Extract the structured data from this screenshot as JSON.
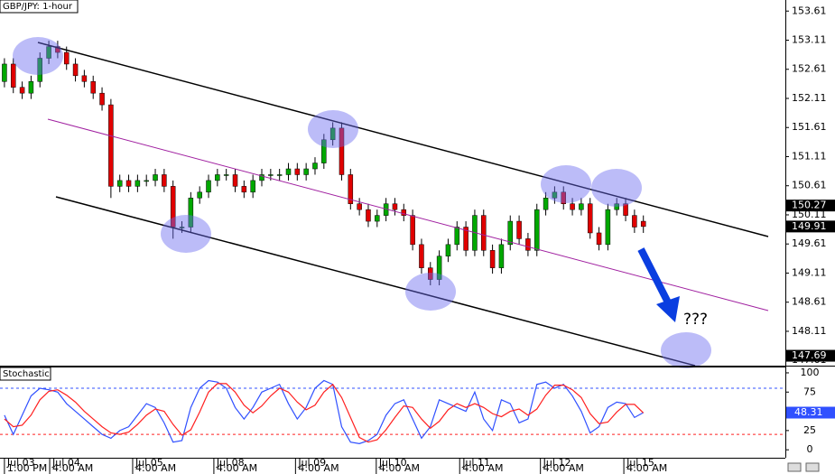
{
  "chart_data": {
    "type": "candlestick",
    "title": "GBP/JPY: 1-hour",
    "up_color": "#00a800",
    "down_color": "#e00000",
    "xlim": [
      -0.5,
      88
    ],
    "x": [
      0,
      1,
      2,
      3,
      4,
      5,
      6,
      7,
      8,
      9,
      10,
      11,
      12,
      13,
      14,
      15,
      16,
      17,
      18,
      19,
      20,
      21,
      22,
      23,
      24,
      25,
      26,
      27,
      28,
      29,
      30,
      31,
      32,
      33,
      34,
      35,
      36,
      37,
      38,
      39,
      40,
      41,
      42,
      43,
      44,
      45,
      46,
      47,
      48,
      49,
      50,
      51,
      52,
      53,
      54,
      55,
      56,
      57,
      58,
      59,
      60,
      61,
      62,
      63,
      64,
      65,
      66,
      67,
      68,
      69,
      70,
      71,
      72
    ],
    "open": [
      152.4,
      152.7,
      152.3,
      152.2,
      152.4,
      152.8,
      153.0,
      152.9,
      152.7,
      152.5,
      152.4,
      152.2,
      152.0,
      150.6,
      150.7,
      150.6,
      150.7,
      150.7,
      150.8,
      150.6,
      149.9,
      149.9,
      150.4,
      150.5,
      150.7,
      150.8,
      150.8,
      150.6,
      150.5,
      150.7,
      150.8,
      150.8,
      150.8,
      150.9,
      150.8,
      150.9,
      151.0,
      151.4,
      151.6,
      150.8,
      150.3,
      150.2,
      150.0,
      150.1,
      150.3,
      150.2,
      150.1,
      149.6,
      149.2,
      149.0,
      149.4,
      149.6,
      149.9,
      149.5,
      150.1,
      149.5,
      149.2,
      149.6,
      150.0,
      149.7,
      149.5,
      150.2,
      150.4,
      150.5,
      150.3,
      150.2,
      150.3,
      149.8,
      149.6,
      150.2,
      150.3,
      150.1,
      150.0
    ],
    "high": [
      152.8,
      152.8,
      152.4,
      152.5,
      152.9,
      153.1,
      153.1,
      153.0,
      152.8,
      152.6,
      152.5,
      152.3,
      152.1,
      150.8,
      150.8,
      150.8,
      150.8,
      150.9,
      150.9,
      150.7,
      150.0,
      150.5,
      150.6,
      150.8,
      150.9,
      150.9,
      150.9,
      150.7,
      150.8,
      150.9,
      150.9,
      150.9,
      151.0,
      151.0,
      151.0,
      151.1,
      151.5,
      151.7,
      151.7,
      150.9,
      150.4,
      150.3,
      150.2,
      150.4,
      150.4,
      150.3,
      150.2,
      149.7,
      149.3,
      149.5,
      149.7,
      150.0,
      150.0,
      150.2,
      150.2,
      149.6,
      149.7,
      150.1,
      150.1,
      149.8,
      150.3,
      150.5,
      150.6,
      150.6,
      150.4,
      150.4,
      150.4,
      149.9,
      150.3,
      150.4,
      150.4,
      150.2,
      150.1
    ],
    "low": [
      152.3,
      152.2,
      152.1,
      152.1,
      152.3,
      152.7,
      152.8,
      152.6,
      152.4,
      152.3,
      152.1,
      151.9,
      150.4,
      150.5,
      150.5,
      150.5,
      150.6,
      150.6,
      150.5,
      149.7,
      149.8,
      149.8,
      150.3,
      150.4,
      150.6,
      150.7,
      150.5,
      150.4,
      150.4,
      150.6,
      150.7,
      150.7,
      150.7,
      150.7,
      150.7,
      150.8,
      150.9,
      151.3,
      150.7,
      150.2,
      150.1,
      149.9,
      149.9,
      150.0,
      150.1,
      150.0,
      149.5,
      149.1,
      148.9,
      148.9,
      149.3,
      149.5,
      149.4,
      149.4,
      149.4,
      149.1,
      149.1,
      149.5,
      149.6,
      149.4,
      149.4,
      150.1,
      150.3,
      150.2,
      150.1,
      150.1,
      149.7,
      149.5,
      149.5,
      150.1,
      150.0,
      149.8,
      149.8
    ],
    "close": [
      152.7,
      152.3,
      152.2,
      152.4,
      152.8,
      153.0,
      152.9,
      152.7,
      152.5,
      152.4,
      152.2,
      152.0,
      150.6,
      150.7,
      150.6,
      150.7,
      150.7,
      150.8,
      150.6,
      149.9,
      149.9,
      150.4,
      150.5,
      150.7,
      150.8,
      150.8,
      150.6,
      150.5,
      150.7,
      150.8,
      150.8,
      150.8,
      150.9,
      150.8,
      150.9,
      151.0,
      151.4,
      151.6,
      150.8,
      150.3,
      150.2,
      150.0,
      150.1,
      150.3,
      150.2,
      150.1,
      149.6,
      149.2,
      149.0,
      149.4,
      149.6,
      149.9,
      149.5,
      150.1,
      149.5,
      149.2,
      149.6,
      150.0,
      149.7,
      149.5,
      150.2,
      150.4,
      150.5,
      150.3,
      150.2,
      150.3,
      149.8,
      149.6,
      150.2,
      150.3,
      150.1,
      149.9,
      149.91
    ],
    "ylim": [
      147.52,
      153.8
    ],
    "yticks": [
      153.61,
      153.11,
      152.61,
      152.11,
      151.61,
      151.11,
      150.61,
      150.11,
      149.61,
      149.11,
      148.61,
      148.11,
      147.61
    ],
    "price_markers": [
      150.27,
      149.91,
      147.69
    ],
    "xticks": [
      {
        "value": 0,
        "label": "Jul 03"
      },
      {
        "value": 5.1,
        "label": "Jul 04"
      },
      {
        "value": 14.45,
        "label": "Jul 05"
      },
      {
        "value": 23.6,
        "label": "Jul 08"
      },
      {
        "value": 32.8,
        "label": "Jul 09"
      },
      {
        "value": 41.9,
        "label": "Jul 10"
      },
      {
        "value": 51.3,
        "label": "Jul 11"
      },
      {
        "value": 60.4,
        "label": "Jul 12"
      },
      {
        "value": 69.8,
        "label": "Jul 15"
      }
    ],
    "xtick_times": [
      "1:00 PM",
      "4:00 AM",
      "4:00 AM",
      "4:00 AM",
      "4:00 AM",
      "4:00 AM",
      "4:00 AM",
      "4:00 AM",
      "4:00 AM"
    ],
    "annotation": "???",
    "indicator": {
      "name": "Stochastic",
      "ylim": [
        -8,
        107
      ],
      "yticks": [
        100,
        75,
        50,
        25,
        0
      ],
      "levels": [
        {
          "value": 80,
          "color": "#3050ff"
        },
        {
          "value": 20,
          "color": "#ff2020"
        }
      ],
      "marker": 48.31,
      "series": [
        {
          "color": "#3050ff",
          "values": [
            45,
            20,
            45,
            70,
            80,
            78,
            75,
            60,
            50,
            40,
            30,
            20,
            15,
            25,
            30,
            45,
            60,
            55,
            35,
            10,
            12,
            55,
            80,
            90,
            88,
            80,
            55,
            40,
            55,
            75,
            80,
            85,
            60,
            40,
            55,
            80,
            90,
            85,
            30,
            10,
            8,
            12,
            20,
            45,
            60,
            65,
            40,
            15,
            30,
            65,
            60,
            55,
            50,
            75,
            40,
            25,
            65,
            60,
            35,
            40,
            85,
            88,
            80,
            85,
            70,
            50,
            22,
            30,
            55,
            62,
            60,
            42,
            48.31
          ]
        },
        {
          "color": "#ff2020",
          "values": [
            40,
            30,
            32,
            45,
            65,
            76,
            78,
            71,
            62,
            50,
            40,
            30,
            22,
            20,
            23,
            33,
            45,
            53,
            50,
            33,
            19,
            26,
            49,
            75,
            86,
            86,
            75,
            58,
            48,
            57,
            70,
            80,
            75,
            62,
            52,
            58,
            75,
            85,
            68,
            42,
            16,
            10,
            13,
            26,
            42,
            57,
            55,
            40,
            28,
            37,
            52,
            60,
            55,
            60,
            55,
            47,
            43,
            50,
            53,
            45,
            53,
            71,
            84,
            84,
            78,
            68,
            47,
            34,
            36,
            49,
            59,
            59,
            48
          ]
        }
      ]
    }
  }
}
